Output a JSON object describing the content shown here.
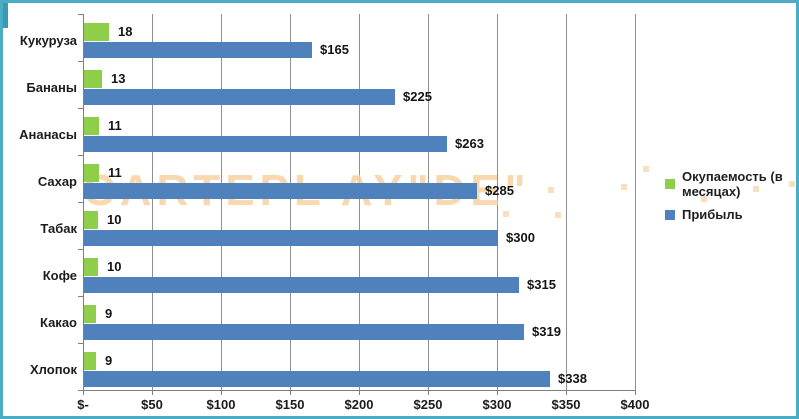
{
  "chart_data": {
    "type": "bar",
    "orientation": "horizontal",
    "title": "",
    "categories": [
      "Кукуруза",
      "Бананы",
      "Ананасы",
      "Сахар",
      "Табак",
      "Кофе",
      "Какао",
      "Хлопок"
    ],
    "series": [
      {
        "name": "Окупаемость (в месяцах)",
        "color": "#8fce4b",
        "values": [
          18,
          13,
          11,
          11,
          10,
          10,
          9,
          9
        ],
        "data_labels": [
          "18",
          "13",
          "11",
          "11",
          "10",
          "10",
          "9",
          "9"
        ]
      },
      {
        "name": "Прибыль",
        "color": "#4f81bd",
        "values": [
          165,
          225,
          263,
          285,
          300,
          315,
          319,
          338
        ],
        "data_labels": [
          "$165",
          "$225",
          "$263",
          "$285",
          "$300",
          "$315",
          "$319",
          "$338"
        ]
      }
    ],
    "x_axis": {
      "min": 0,
      "max": 400,
      "tick_interval": 50,
      "tick_labels": [
        "$-",
        "$50",
        "$100",
        "$150",
        "$200",
        "$250",
        "$300",
        "$350",
        "$400"
      ]
    },
    "grid": "vertical",
    "legend_position": "right"
  },
  "legend": {
    "items": [
      {
        "label": "Окупаемость (в месяцах)",
        "color": "#8fce4b"
      },
      {
        "label": "Прибыль",
        "color": "#4f81bd"
      }
    ]
  },
  "watermark": {
    "text": "CARTEPL AY\"DE\""
  },
  "frame": {
    "border_color": "#4bacc6"
  }
}
